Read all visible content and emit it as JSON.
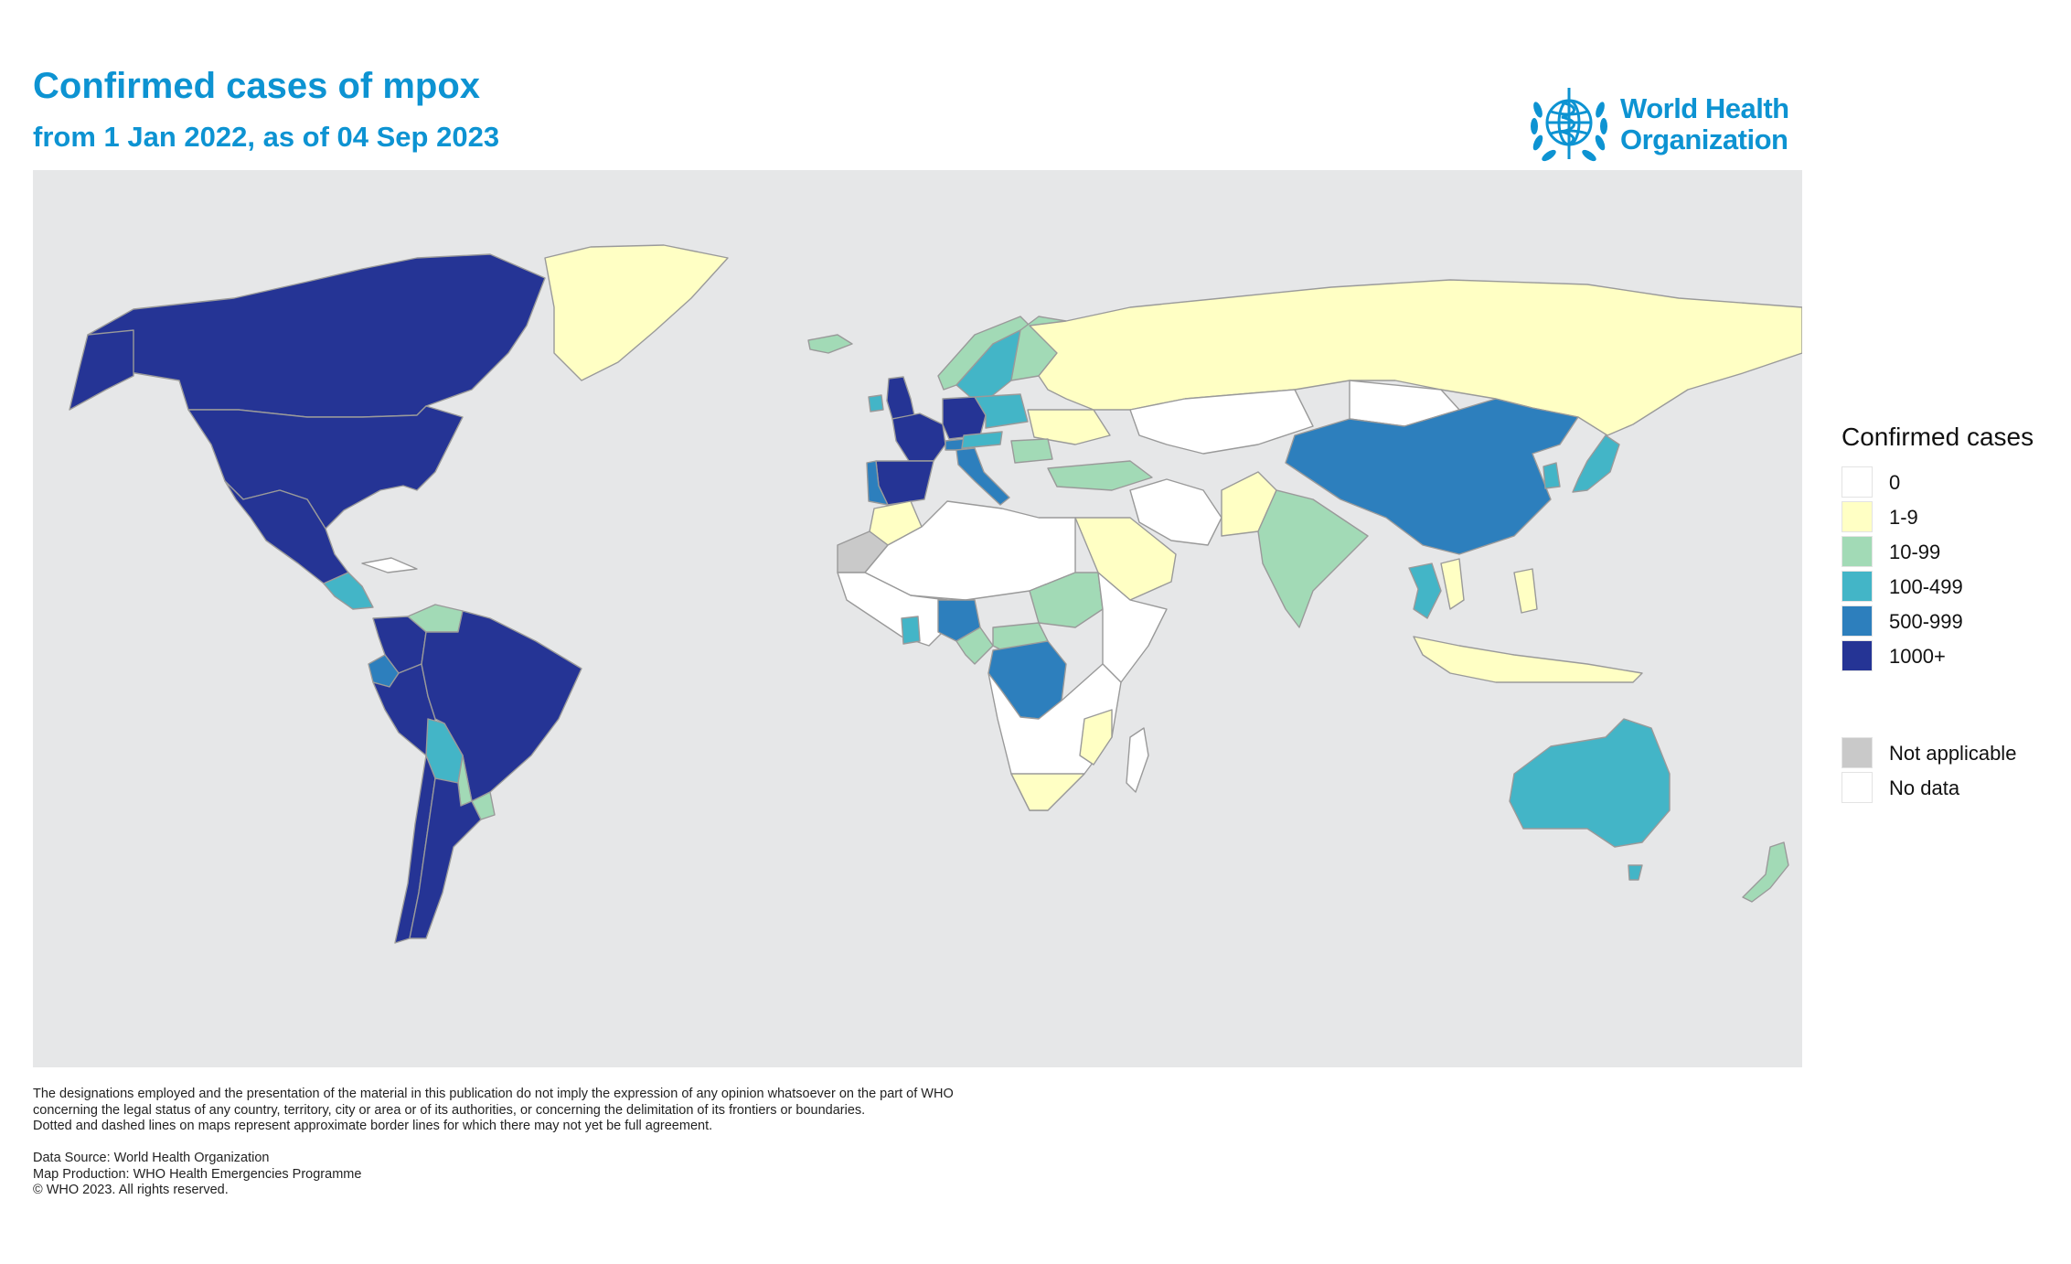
{
  "header": {
    "title": "Confirmed cases of mpox",
    "subtitle": "from 1 Jan 2022, as of 04 Sep 2023"
  },
  "logo": {
    "line1": "World Health",
    "line2": "Organization",
    "icon": "who-emblem-icon"
  },
  "colors": {
    "title_text": "#0d93d2",
    "ocean": "#e6e7e8",
    "border": "#9a9a9a",
    "zero": "#ffffff",
    "c1_9": "#ffffc4",
    "c10_99": "#a2dab6",
    "c100_499": "#43b5c7",
    "c500_999": "#2d7fbd",
    "c1000_plus": "#253495",
    "not_applicable": "#c9c9c9",
    "no_data": "#ffffff"
  },
  "legend": {
    "title": "Confirmed cases",
    "items": [
      {
        "label": "0",
        "color": "#ffffff"
      },
      {
        "label": "1-9",
        "color": "#ffffc4"
      },
      {
        "label": "10-99",
        "color": "#a2dab6"
      },
      {
        "label": "100-499",
        "color": "#43b5c7"
      },
      {
        "label": "500-999",
        "color": "#2d7fbd"
      },
      {
        "label": "1000+",
        "color": "#253495"
      }
    ],
    "extra_items": [
      {
        "label": "Not applicable",
        "color": "#c9c9c9"
      },
      {
        "label": "No data",
        "color": "#ffffff"
      }
    ]
  },
  "map": {
    "regions": [
      {
        "name": "Canada",
        "category": "1000+"
      },
      {
        "name": "United States of America",
        "category": "1000+"
      },
      {
        "name": "Mexico",
        "category": "1000+"
      },
      {
        "name": "Guatemala",
        "category": "100-499"
      },
      {
        "name": "Colombia",
        "category": "1000+"
      },
      {
        "name": "Venezuela",
        "category": "10-99"
      },
      {
        "name": "Ecuador",
        "category": "500-999"
      },
      {
        "name": "Peru",
        "category": "1000+"
      },
      {
        "name": "Brazil",
        "category": "1000+"
      },
      {
        "name": "Bolivia",
        "category": "100-499"
      },
      {
        "name": "Paraguay",
        "category": "10-99"
      },
      {
        "name": "Chile",
        "category": "1000+"
      },
      {
        "name": "Argentina",
        "category": "1000+"
      },
      {
        "name": "Uruguay",
        "category": "10-99"
      },
      {
        "name": "Greenland",
        "category": "1-9"
      },
      {
        "name": "Iceland",
        "category": "10-99"
      },
      {
        "name": "Ireland",
        "category": "100-499"
      },
      {
        "name": "United Kingdom",
        "category": "1000+"
      },
      {
        "name": "Norway",
        "category": "10-99"
      },
      {
        "name": "Sweden",
        "category": "100-499"
      },
      {
        "name": "Finland",
        "category": "10-99"
      },
      {
        "name": "France",
        "category": "1000+"
      },
      {
        "name": "Germany",
        "category": "1000+"
      },
      {
        "name": "Poland",
        "category": "100-499"
      },
      {
        "name": "Spain",
        "category": "1000+"
      },
      {
        "name": "Portugal",
        "category": "500-999"
      },
      {
        "name": "Italy",
        "category": "500-999"
      },
      {
        "name": "Switzerland",
        "category": "500-999"
      },
      {
        "name": "Austria",
        "category": "100-499"
      },
      {
        "name": "Romania",
        "category": "10-99"
      },
      {
        "name": "Ukraine",
        "category": "1-9"
      },
      {
        "name": "Russian Federation",
        "category": "1-9"
      },
      {
        "name": "Turkey",
        "category": "10-99"
      },
      {
        "name": "Kazakhstan",
        "category": "0"
      },
      {
        "name": "Mongolia",
        "category": "0"
      },
      {
        "name": "China",
        "category": "500-999"
      },
      {
        "name": "Japan",
        "category": "100-499"
      },
      {
        "name": "Republic of Korea",
        "category": "100-499"
      },
      {
        "name": "India",
        "category": "10-99"
      },
      {
        "name": "Pakistan",
        "category": "1-9"
      },
      {
        "name": "Iran",
        "category": "0"
      },
      {
        "name": "Saudi Arabia",
        "category": "1-9"
      },
      {
        "name": "Thailand",
        "category": "100-499"
      },
      {
        "name": "Viet Nam",
        "category": "1-9"
      },
      {
        "name": "Philippines",
        "category": "1-9"
      },
      {
        "name": "Indonesia",
        "category": "1-9"
      },
      {
        "name": "Australia",
        "category": "100-499"
      },
      {
        "name": "New Zealand",
        "category": "10-99"
      },
      {
        "name": "Morocco",
        "category": "1-9"
      },
      {
        "name": "Western Sahara",
        "category": "Not applicable"
      },
      {
        "name": "Sudan",
        "category": "10-99"
      },
      {
        "name": "Nigeria",
        "category": "500-999"
      },
      {
        "name": "Ghana",
        "category": "100-499"
      },
      {
        "name": "Cameroon",
        "category": "10-99"
      },
      {
        "name": "Central African Republic",
        "category": "10-99"
      },
      {
        "name": "Democratic Republic of the Congo",
        "category": "500-999"
      },
      {
        "name": "Mozambique",
        "category": "1-9"
      },
      {
        "name": "South Africa",
        "category": "1-9"
      }
    ]
  },
  "disclaimer": {
    "lines": [
      "The designations employed and the presentation of the material in this publication do not imply the expression of any opinion whatsoever on the part of WHO",
      "concerning the legal status of any country, territory, city or area or of its authorities, or concerning the delimitation of its frontiers or boundaries.",
      "Dotted and dashed lines on maps represent approximate border lines for which there may not yet be full agreement."
    ]
  },
  "credits": {
    "data_source": "Data Source: World Health Organization",
    "map_production": "Map Production: WHO Health Emergencies Programme",
    "copyright": "© WHO 2023. All rights reserved."
  }
}
